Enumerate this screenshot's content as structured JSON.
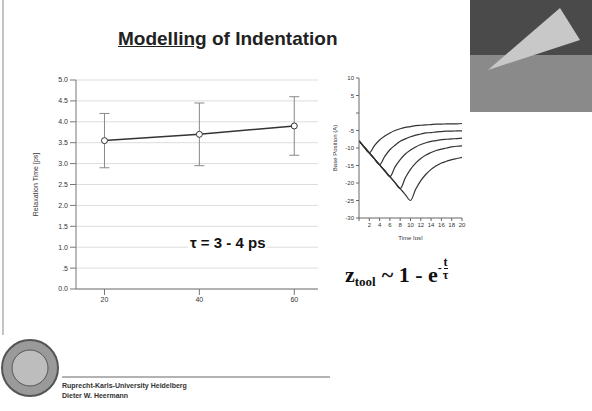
{
  "title": "Modelling of Indentation",
  "footer": [
    "Ruprecht-Karls-University Heidelberg",
    "Dieter W. Heermann"
  ],
  "formula": {
    "lhs": "z",
    "lhs_sub": "tool",
    "rhs": "~ 1 - e",
    "exp_sign": "-",
    "exp_num": "t",
    "exp_den": "τ"
  },
  "chart_data": [
    {
      "type": "line",
      "x": [
        20,
        40,
        60
      ],
      "values": [
        3.55,
        3.7,
        3.9
      ],
      "errors": [
        0.65,
        0.75,
        0.7
      ],
      "xlim": [
        14,
        65
      ],
      "xticks": [
        20,
        40,
        60
      ],
      "ylim": [
        0,
        5
      ],
      "yticks": [
        {
          "value": 0,
          "label": "0.0"
        },
        {
          "value": 0.5,
          "label": ".5"
        },
        {
          "value": 1,
          "label": "1.0"
        },
        {
          "value": 1.5,
          "label": "1.5"
        },
        {
          "value": 2,
          "label": "2.0"
        },
        {
          "value": 2.5,
          "label": "2.5"
        },
        {
          "value": 3,
          "label": "3.0"
        },
        {
          "value": 3.5,
          "label": "3.5"
        },
        {
          "value": 4,
          "label": "4.0"
        },
        {
          "value": 4.5,
          "label": "4.5"
        },
        {
          "value": 5,
          "label": "5.0"
        }
      ],
      "y_label": "Relaxation Time [ps]",
      "annotation": "τ = 3 - 4 ps",
      "color": "#333333",
      "marker": "circle",
      "grid": true
    },
    {
      "type": "line",
      "x": [
        0,
        1,
        2,
        3,
        4,
        5,
        6,
        7,
        8,
        9,
        10,
        11,
        12,
        13,
        14,
        15,
        16,
        17,
        18,
        19,
        20
      ],
      "series": [
        {
          "color": "#333333",
          "values": [
            -8,
            -9.7,
            -11.4,
            -9.3,
            -7.7,
            -6.6,
            -5.7,
            -5.0,
            -4.5,
            -4.1,
            -3.9,
            -3.6,
            -3.5,
            -3.4,
            -3.3,
            -3.2,
            -3.2,
            -3.1,
            -3.1,
            -3.1,
            -3.0
          ]
        },
        {
          "color": "#333333",
          "values": [
            -8,
            -9.7,
            -11.4,
            -13.1,
            -14.8,
            -12.4,
            -10.5,
            -9.2,
            -8.1,
            -7.4,
            -6.8,
            -6.3,
            -6.0,
            -5.7,
            -5.6,
            -5.4,
            -5.3,
            -5.2,
            -5.2,
            -5.1,
            -5.1
          ]
        },
        {
          "color": "#333333",
          "values": [
            -8,
            -9.7,
            -11.4,
            -13.1,
            -14.8,
            -16.5,
            -18.2,
            -15.4,
            -13.3,
            -11.7,
            -10.6,
            -9.7,
            -9.0,
            -8.5,
            -8.1,
            -7.9,
            -7.6,
            -7.5,
            -7.4,
            -7.3,
            -7.2
          ]
        },
        {
          "color": "#333333",
          "values": [
            -8,
            -9.7,
            -11.4,
            -13.1,
            -14.8,
            -16.5,
            -18.2,
            -19.9,
            -21.6,
            -18.5,
            -16.1,
            -14.3,
            -13.0,
            -12.0,
            -11.3,
            -10.7,
            -10.3,
            -10.0,
            -9.7,
            -9.5,
            -9.4
          ]
        },
        {
          "color": "#333333",
          "values": [
            -8,
            -9.7,
            -11.4,
            -13.1,
            -14.8,
            -16.5,
            -18.2,
            -19.9,
            -21.6,
            -23.3,
            -25,
            -21.8,
            -19.3,
            -17.5,
            -16.1,
            -15.1,
            -14.3,
            -13.8,
            -13.3,
            -13.0,
            -12.7
          ]
        }
      ],
      "xlim": [
        0,
        20
      ],
      "xticks": [
        0,
        2,
        4,
        6,
        8,
        10,
        12,
        14,
        16,
        18,
        20
      ],
      "ylim": [
        -30,
        10
      ],
      "yticks": [
        -30,
        -25,
        -20,
        -15,
        -10,
        -5,
        0,
        5,
        10
      ],
      "x_label": "Time [ps]",
      "y_label": "Base Position (Å)"
    }
  ]
}
